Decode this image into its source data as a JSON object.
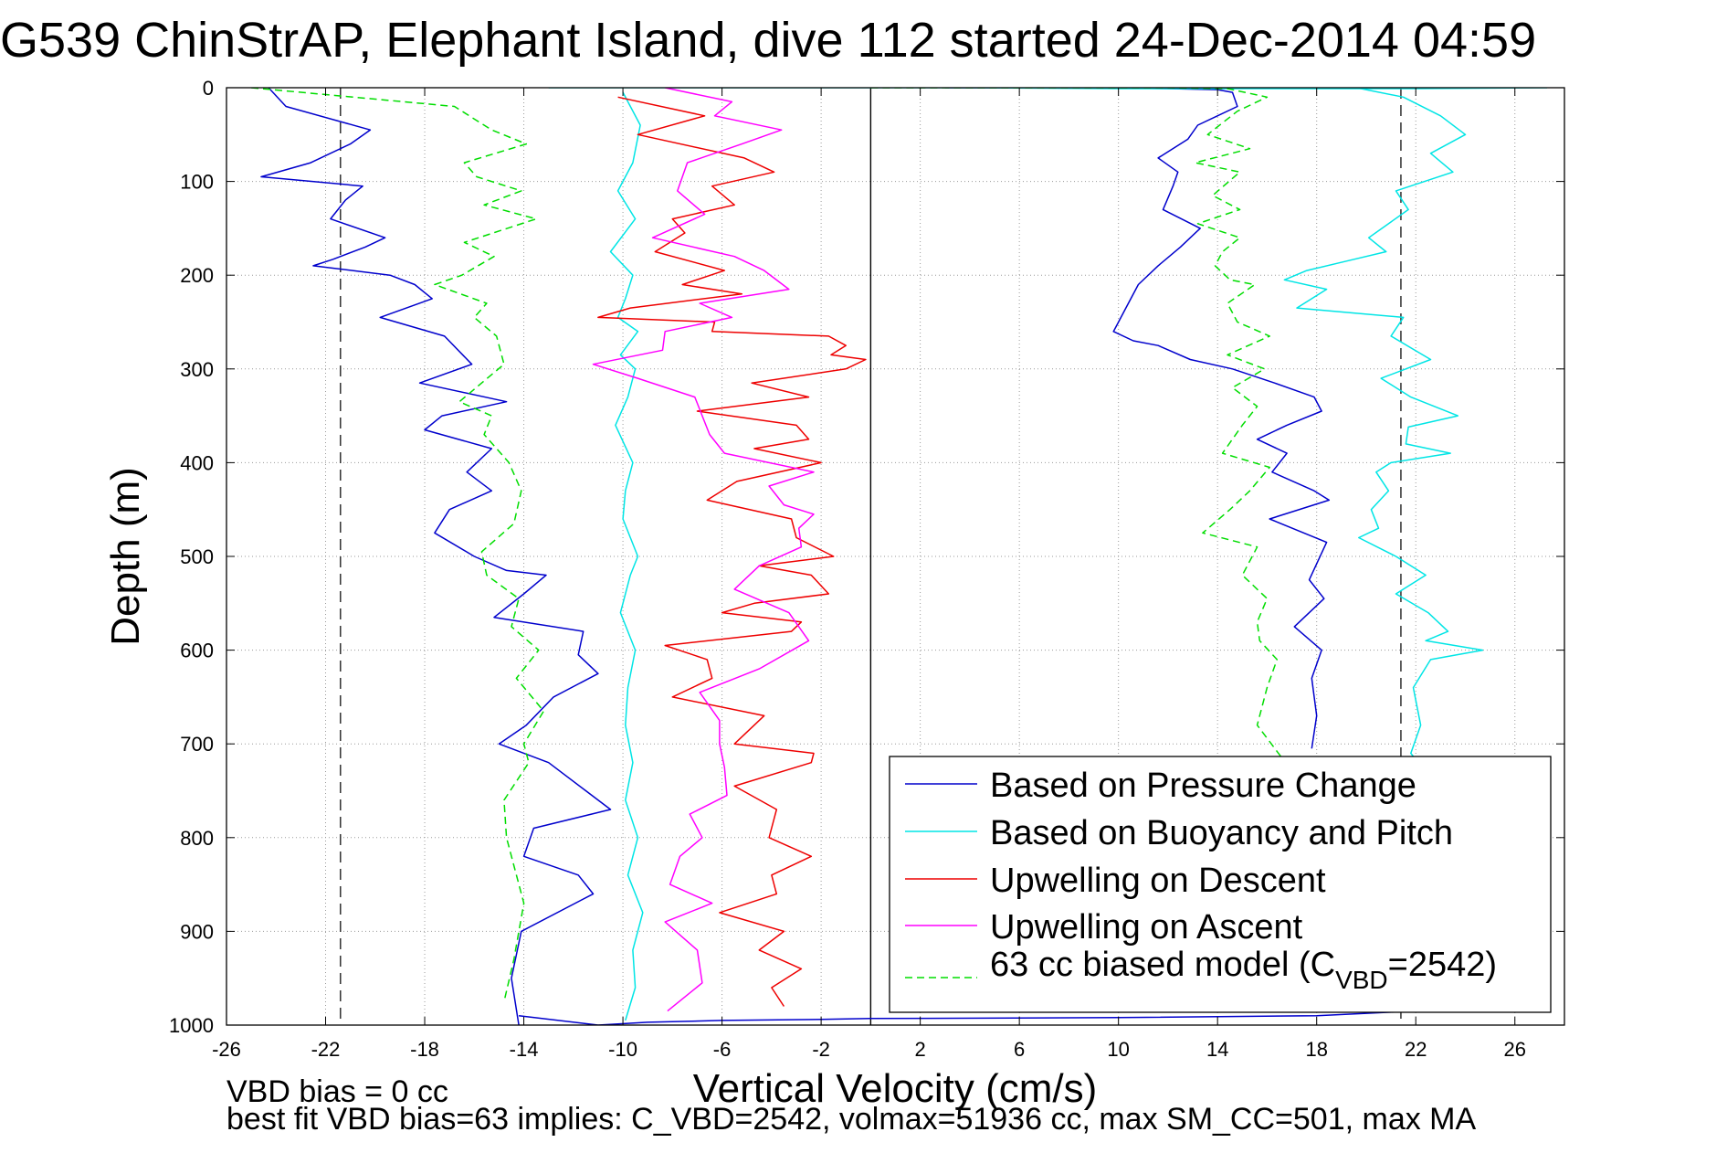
{
  "chart_data": {
    "type": "line",
    "title": "G539 ChinStrAP, Elephant Island, dive 112 started 24-Dec-2014 04:59",
    "xlabel": "Vertical Velocity (cm/s)",
    "ylabel": "Depth (m)",
    "xlim": [
      -26,
      28
    ],
    "ylim": [
      1000,
      0
    ],
    "y_reversed": true,
    "x_ticks": [
      -26,
      -22,
      -18,
      -14,
      -10,
      -6,
      -2,
      2,
      6,
      10,
      14,
      18,
      22,
      26
    ],
    "y_ticks": [
      0,
      100,
      200,
      300,
      400,
      500,
      600,
      700,
      800,
      900,
      1000
    ],
    "grid": true,
    "legend_position": "bottom-right",
    "annotations": {
      "bias_note": "VBD bias = 0 cc",
      "fit_note": "best fit VBD bias=63 implies: C_VBD=2542, volmax=51936 cc, max SM_CC=501, max MA"
    },
    "reference_lines": {
      "zero_solid_x": 0,
      "dashed_x": [
        -21.4,
        21.4
      ]
    },
    "legend": [
      {
        "label": "Based on Pressure Change"
      },
      {
        "label": "Based on Buoyancy and Pitch"
      },
      {
        "label": "Upwelling on Descent"
      },
      {
        "label": "Upwelling on Ascent"
      },
      {
        "label_prefix": "63 cc biased model (C",
        "label_sub": "VBD",
        "label_suffix": "=2542)"
      }
    ],
    "series": [
      {
        "color": "#0000cc",
        "dash": "none",
        "segments": [
          {
            "x": [
              -24.3,
              -23.6,
              -20.2,
              -21.0,
              -22.6,
              -24.6,
              -20.5,
              -21.2,
              -21.8,
              -19.6,
              -20.4,
              -21.7,
              -22.5,
              -19.4,
              -18.4,
              -17.7,
              -19.8,
              -17.2,
              -16.1,
              -18.2,
              -14.7,
              -17.3,
              -18.0,
              -15.3,
              -16.3,
              -15.3,
              -17.0,
              -17.6,
              -16.0,
              -14.7,
              -13.1,
              -14.0,
              -15.2,
              -11.6,
              -11.8,
              -11.0,
              -12.8,
              -13.9,
              -15.0,
              -13.0,
              -11.5,
              -10.5,
              -13.6,
              -14.0,
              -11.8,
              -11.2,
              -14.1,
              -14.5,
              -14.2
            ],
            "y": [
              0,
              20,
              45,
              60,
              80,
              95,
              105,
              120,
              140,
              160,
              170,
              183,
              190,
              200,
              210,
              225,
              245,
              265,
              295,
              315,
              335,
              350,
              365,
              385,
              410,
              430,
              450,
              475,
              500,
              515,
              520,
              540,
              565,
              580,
              605,
              625,
              650,
              680,
              700,
              720,
              750,
              770,
              790,
              820,
              840,
              860,
              900,
              950,
              1000
            ]
          },
          {
            "x": [
              -14.2,
              -11.0,
              -9.0,
              -6.0,
              -2.0,
              0.0,
              10.0,
              18.0,
              22.0
            ],
            "y": [
              990,
              1000,
              997,
              995,
              994,
              993,
              992,
              990,
              985
            ]
          },
          {
            "x": [
              3.0,
              6.0,
              9.0,
              12.0,
              14.0,
              14.6,
              14.8,
              13.2,
              12.8,
              11.6,
              12.4,
              12.2,
              11.8,
              13.3,
              12.5,
              11.6,
              10.8,
              10.3,
              9.9,
              9.8,
              10.6,
              11.6,
              12.9,
              14.6,
              16.3,
              17.9,
              18.2,
              16.8,
              15.6,
              16.8,
              16.2,
              17.9,
              18.5,
              16.1,
              18.4,
              17.7,
              18.3,
              17.1,
              18.2,
              17.8,
              18.0,
              17.8
            ],
            "y": [
              0,
              0,
              0,
              1,
              2,
              5,
              20,
              40,
              55,
              75,
              90,
              105,
              130,
              150,
              170,
              190,
              210,
              235,
              255,
              260,
              270,
              275,
              290,
              300,
              315,
              330,
              345,
              360,
              375,
              390,
              410,
              430,
              440,
              460,
              485,
              525,
              545,
              575,
              600,
              630,
              670,
              705
            ]
          }
        ]
      },
      {
        "color": "#00e5e5",
        "dash": "none",
        "segments": [
          {
            "x": [
              -10.0,
              -9.3,
              -9.6,
              -10.2,
              -9.5,
              -10.5,
              -9.6,
              -9.9,
              -10.2,
              -9.4,
              -10.1,
              -9.5,
              -9.8,
              -10.3,
              -9.6,
              -9.9,
              -10.0,
              -9.4,
              -9.7,
              -10.1,
              -9.5,
              -9.8,
              -9.9,
              -9.6,
              -9.9,
              -9.4,
              -9.8,
              -9.2,
              -9.6,
              -9.5,
              -9.9
            ],
            "y": [
              5,
              40,
              80,
              110,
              140,
              175,
              200,
              225,
              245,
              260,
              285,
              300,
              330,
              360,
              400,
              430,
              460,
              500,
              520,
              560,
              600,
              640,
              680,
              720,
              760,
              800,
              840,
              880,
              920,
              960,
              995
            ]
          },
          {
            "x": [
              19.6,
              21.5,
              23.0,
              24.0,
              22.6,
              23.5,
              21.2,
              21.7,
              20.1,
              20.8,
              19.2,
              17.6,
              16.7,
              18.4,
              17.2,
              21.5,
              21.0,
              22.6,
              20.6,
              21.8,
              23.7,
              21.7,
              21.6,
              23.4,
              21.0,
              20.4,
              20.9,
              20.2,
              20.5,
              19.7,
              21.2,
              22.4,
              21.2,
              22.5,
              23.3,
              22.4,
              24.7,
              22.6,
              21.9,
              22.2,
              21.8,
              22.1
            ],
            "y": [
              0,
              10,
              30,
              50,
              70,
              90,
              110,
              130,
              160,
              175,
              185,
              195,
              205,
              215,
              235,
              245,
              265,
              290,
              310,
              330,
              350,
              362,
              380,
              390,
              400,
              410,
              430,
              450,
              470,
              480,
              500,
              520,
              540,
              560,
              580,
              590,
              600,
              610,
              640,
              680,
              710,
              720
            ]
          },
          {
            "x": [
              27.3,
              22.0,
              18.0,
              10.0,
              4.0,
              -5.0,
              -13.0
            ],
            "y": [
              0,
              1,
              1,
              1,
              0,
              0,
              0
            ]
          }
        ]
      },
      {
        "color": "#ee0000",
        "dash": "none",
        "segments": [
          {
            "x": [
              -10.2,
              -6.7,
              -9.4,
              -5.1,
              -3.9,
              -6.4,
              -5.5,
              -8.0,
              -7.5,
              -8.7,
              -5.9,
              -7.6,
              -5.2,
              -9.7,
              -11.0,
              -6.3,
              -6.4,
              -1.7,
              -1.0,
              -1.6,
              -0.2,
              -1.0,
              -4.8,
              -2.5,
              -7.0,
              -3.0,
              -2.5,
              -4.7,
              -2.0,
              -5.4,
              -6.6,
              -3.2,
              -3.0,
              -1.5,
              -4.5,
              -2.4,
              -1.7,
              -4.7,
              -6.0,
              -2.8,
              -3.2,
              -8.3,
              -6.6,
              -6.4,
              -8.0,
              -4.3,
              -5.5,
              -2.3,
              -2.4,
              -5.5,
              -3.8,
              -4.1,
              -2.4,
              -4.0,
              -3.8,
              -6.1,
              -3.5,
              -4.5,
              -2.8,
              -4.0,
              -3.5
            ],
            "y": [
              10,
              30,
              50,
              75,
              90,
              105,
              125,
              140,
              155,
              175,
              195,
              210,
              220,
              235,
              245,
              250,
              260,
              265,
              275,
              285,
              290,
              300,
              315,
              330,
              345,
              360,
              375,
              385,
              400,
              420,
              440,
              460,
              480,
              500,
              510,
              520,
              540,
              550,
              560,
              570,
              580,
              595,
              610,
              630,
              650,
              670,
              700,
              710,
              720,
              745,
              770,
              800,
              820,
              840,
              860,
              880,
              900,
              920,
              940,
              960,
              980
            ]
          }
        ]
      },
      {
        "color": "#ff00ff",
        "dash": "none",
        "segments": [
          {
            "x": [
              -8.3,
              -5.6,
              -6.3,
              -3.6,
              -5.2,
              -7.4,
              -7.8,
              -6.7,
              -8.8,
              -5.5,
              -4.3,
              -3.3,
              -6.9,
              -5.6,
              -8.3,
              -8.4,
              -11.2,
              -9.4,
              -7.1,
              -6.8,
              -6.5,
              -5.9,
              -2.3,
              -4.1,
              -3.5,
              -2.3,
              -2.9,
              -2.8,
              -4.5,
              -5.5,
              -3.3,
              -2.5,
              -4.5,
              -6.9,
              -6.1,
              -6.1,
              -5.9,
              -5.8,
              -7.3,
              -6.8,
              -7.7,
              -8.1,
              -6.4,
              -8.3,
              -7.0,
              -6.8,
              -8.2
            ],
            "y": [
              0,
              15,
              30,
              45,
              60,
              80,
              110,
              135,
              160,
              180,
              195,
              215,
              230,
              245,
              260,
              280,
              295,
              310,
              330,
              350,
              370,
              390,
              410,
              425,
              445,
              455,
              470,
              490,
              510,
              535,
              560,
              590,
              620,
              645,
              675,
              700,
              725,
              755,
              775,
              800,
              820,
              850,
              870,
              890,
              920,
              955,
              985
            ]
          }
        ]
      },
      {
        "color": "#00dd00",
        "dash": "dash",
        "segments": [
          {
            "x": [
              -25.0,
              -16.8,
              -15.3,
              -13.9,
              -16.4,
              -15.9,
              -14.1,
              -15.6,
              -13.5,
              -16.4,
              -15.2,
              -16.5,
              -17.6,
              -15.5,
              -16.0,
              -15.1,
              -14.8,
              -15.7,
              -16.6,
              -15.3,
              -15.6,
              -14.6,
              -14.1,
              -14.4,
              -15.7,
              -15.5,
              -14.2,
              -14.5,
              -13.4,
              -14.3,
              -13.2,
              -14.0,
              -13.8,
              -14.8,
              -14.7,
              -14.0,
              -14.4,
              -14.8
            ],
            "y": [
              0,
              20,
              45,
              60,
              80,
              95,
              110,
              125,
              140,
              165,
              180,
              200,
              210,
              230,
              245,
              265,
              295,
              315,
              335,
              350,
              370,
              400,
              430,
              465,
              495,
              520,
              545,
              575,
              600,
              630,
              665,
              700,
              720,
              760,
              800,
              870,
              930,
              975
            ]
          },
          {
            "x": [
              0.0,
              6.0,
              12.0,
              14.4,
              16.0,
              14.8,
              13.6,
              15.3,
              13.1,
              14.9,
              13.8,
              14.9,
              13.2,
              14.9,
              14.2,
              13.9,
              14.5,
              15.5,
              14.4,
              14.8,
              16.1,
              14.4,
              15.9,
              14.6,
              15.6,
              15.0,
              14.2,
              16.1,
              15.3,
              14.5,
              13.4,
              15.6,
              15.0,
              16.0,
              15.6,
              15.7,
              16.4,
              16.0,
              15.6,
              16.6
            ],
            "y": [
              0,
              0,
              0,
              1,
              10,
              25,
              50,
              65,
              80,
              90,
              115,
              130,
              145,
              160,
              175,
              190,
              205,
              210,
              230,
              250,
              265,
              285,
              300,
              320,
              340,
              360,
              390,
              405,
              430,
              450,
              475,
              490,
              520,
              545,
              570,
              590,
              610,
              640,
              680,
              715
            ]
          }
        ]
      }
    ]
  }
}
